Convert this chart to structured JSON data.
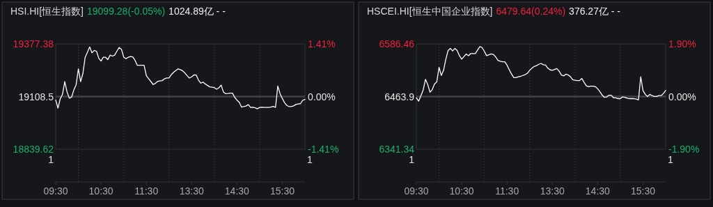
{
  "chart_data": [
    {
      "type": "line",
      "title": "HSI.HI[恒生指数]",
      "subtitle": "19099.28(-0.05%)",
      "annotations": [
        "1024.89亿 - -",
        "1",
        "1"
      ],
      "categories": [
        "09:30",
        null,
        null,
        null,
        null,
        null,
        null,
        null,
        null,
        null,
        null,
        null,
        null,
        null,
        null,
        null,
        null,
        null,
        null,
        null,
        "10:30",
        null,
        null,
        null,
        null,
        null,
        null,
        null,
        null,
        null,
        null,
        null,
        null,
        null,
        null,
        null,
        null,
        null,
        null,
        null,
        "11:30",
        null,
        null,
        null,
        null,
        null,
        null,
        null,
        null,
        null,
        null,
        null,
        null,
        null,
        null,
        null,
        null,
        null,
        null,
        null,
        "13:30",
        null,
        null,
        null,
        null,
        null,
        null,
        null,
        null,
        null,
        null,
        null,
        null,
        null,
        null,
        null,
        null,
        null,
        null,
        null,
        "14:30",
        null,
        null,
        null,
        null,
        null,
        null,
        null,
        null,
        null,
        null,
        null,
        null,
        null,
        null,
        null,
        null,
        null,
        null,
        null,
        "15:30",
        null,
        null,
        null,
        null,
        null,
        null,
        null,
        null,
        null,
        null
      ],
      "series": [
        {
          "color": "#ffffff",
          "values": [
            19091,
            19049,
            19097,
            19120,
            19185,
            19132,
            19100,
            19105,
            19142,
            19168,
            19250,
            19185,
            19226,
            19309,
            19335,
            19362,
            19332,
            19344,
            19340,
            19304,
            19290,
            19309,
            19309,
            19297,
            19320,
            19315,
            19320,
            19340,
            19359,
            19350,
            19310,
            19302,
            19309,
            19313,
            19311,
            19294,
            19268,
            19268,
            19268,
            19268,
            19215,
            19200,
            19185,
            19170,
            19176,
            19186,
            19188,
            19190,
            19199,
            19203,
            19203,
            19220,
            19232,
            19241,
            19250,
            19246,
            19240,
            19229,
            19215,
            19203,
            19209,
            19219,
            19218,
            19193,
            19177,
            19182,
            19173,
            19165,
            19158,
            19156,
            19154,
            19146,
            19153,
            19167,
            19132,
            19123,
            19124,
            19126,
            19126,
            19104,
            19090,
            19079,
            19055,
            19057,
            19060,
            19067,
            19053,
            19054,
            19051,
            19046,
            19053,
            19054,
            19053,
            19053,
            19053,
            19055,
            19058,
            19053,
            19162,
            19123,
            19099,
            19077,
            19063,
            19057,
            19057,
            19061,
            19068,
            19071,
            19072,
            19089,
            19094
          ]
        }
      ],
      "ylim": [
        18839.62,
        19377.38
      ],
      "yticks": [
        18839.62,
        19108.5,
        19377.38
      ],
      "y2lim": [
        -1.41,
        1.41
      ],
      "y2ticks": [
        {
          "value": -1.41,
          "label": "-1.41%"
        },
        {
          "value": 0,
          "label": "0.00%"
        },
        {
          "value": 1.41,
          "label": "1.41%"
        }
      ],
      "ref_lines": [
        {
          "axis": "y",
          "value": 19108.5,
          "color": "#3a3b3f",
          "line_style": "solid"
        }
      ],
      "grid": "x"
    },
    {
      "type": "line",
      "title": "HSCEI.HI[恒生中国企业指数]",
      "subtitle": "6479.64(0.24%)",
      "annotations": [
        "376.27亿 - -",
        "1",
        "1"
      ],
      "categories": [
        "09:30",
        null,
        null,
        null,
        null,
        null,
        null,
        null,
        null,
        null,
        null,
        null,
        null,
        null,
        null,
        null,
        null,
        null,
        null,
        null,
        "10:30",
        null,
        null,
        null,
        null,
        null,
        null,
        null,
        null,
        null,
        null,
        null,
        null,
        null,
        null,
        null,
        null,
        null,
        null,
        null,
        "11:30",
        null,
        null,
        null,
        null,
        null,
        null,
        null,
        null,
        null,
        null,
        null,
        null,
        null,
        null,
        null,
        null,
        null,
        null,
        null,
        "13:30",
        null,
        null,
        null,
        null,
        null,
        null,
        null,
        null,
        null,
        null,
        null,
        null,
        null,
        null,
        null,
        null,
        null,
        null,
        null,
        "14:30",
        null,
        null,
        null,
        null,
        null,
        null,
        null,
        null,
        null,
        null,
        null,
        null,
        null,
        null,
        null,
        null,
        null,
        null,
        null,
        "15:30",
        null,
        null,
        null,
        null,
        null,
        null,
        null,
        null,
        null,
        null
      ],
      "series": [
        {
          "color": "#ffffff",
          "values": [
            6461,
            6453,
            6466,
            6479,
            6504,
            6492,
            6474,
            6480,
            6493,
            6498,
            6532,
            6513,
            6525,
            6551,
            6571,
            6576,
            6570,
            6576,
            6571,
            6559,
            6551,
            6557,
            6563,
            6559,
            6564,
            6564,
            6564,
            6572,
            6580,
            6578,
            6569,
            6559,
            6561,
            6563,
            6562,
            6556,
            6548,
            6546,
            6545,
            6545,
            6537,
            6526,
            6516,
            6508,
            6508,
            6510,
            6511,
            6513,
            6515,
            6518,
            6525,
            6530,
            6534,
            6536,
            6539,
            6541,
            6538,
            6537,
            6530,
            6526,
            6525,
            6527,
            6529,
            6523,
            6514,
            6512,
            6516,
            6514,
            6510,
            6503,
            6502,
            6501,
            6501,
            6506,
            6497,
            6489,
            6487,
            6488,
            6488,
            6487,
            6482,
            6475,
            6467,
            6462,
            6463,
            6467,
            6467,
            6461,
            6461,
            6459,
            6459,
            6463,
            6462,
            6460,
            6459,
            6459,
            6459,
            6458,
            6456,
            6510,
            6478,
            6469,
            6464,
            6469,
            6466,
            6464,
            6464,
            6466,
            6466,
            6471,
            6478
          ]
        }
      ],
      "ylim": [
        6341.34,
        6586.46
      ],
      "yticks": [
        6341.34,
        6463.9,
        6586.46
      ],
      "y2lim": [
        -1.9,
        1.9
      ],
      "y2ticks": [
        {
          "value": -1.9,
          "label": "-1.90%"
        },
        {
          "value": 0,
          "label": "0.00%"
        },
        {
          "value": 1.9,
          "label": "1.90%"
        }
      ],
      "ref_lines": [
        {
          "axis": "y",
          "value": 6463.9,
          "color": "#3a3b3f",
          "line_style": "solid"
        }
      ],
      "grid": "x"
    }
  ]
}
